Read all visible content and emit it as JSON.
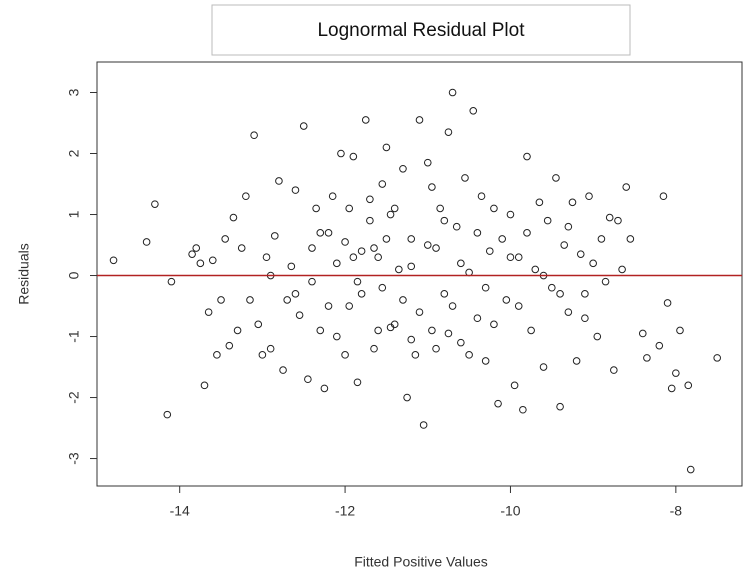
{
  "chart_data": {
    "type": "scatter",
    "title": "Lognormal Residual Plot",
    "x_label": "Fitted Positive Values",
    "y_label": "Residuals",
    "x": [
      -14.8,
      -14.4,
      -14.3,
      -14.15,
      -14.1,
      -13.85,
      -13.8,
      -13.75,
      -13.7,
      -13.65,
      -13.6,
      -13.55,
      -13.5,
      -13.45,
      -13.4,
      -13.35,
      -13.3,
      -13.25,
      -13.2,
      -13.15,
      -13.1,
      -13.05,
      -13.0,
      -12.95,
      -12.9,
      -12.85,
      -12.8,
      -12.75,
      -12.7,
      -12.65,
      -12.6,
      -12.55,
      -12.5,
      -12.45,
      -12.4,
      -12.35,
      -12.3,
      -12.25,
      -12.2,
      -12.15,
      -12.1,
      -12.05,
      -12.0,
      -11.95,
      -11.9,
      -11.85,
      -11.8,
      -11.75,
      -11.7,
      -11.65,
      -11.6,
      -11.55,
      -11.5,
      -11.45,
      -11.4,
      -11.35,
      -11.3,
      -11.25,
      -11.2,
      -11.15,
      -11.1,
      -11.05,
      -11.0,
      -10.95,
      -10.9,
      -10.85,
      -10.8,
      -10.75,
      -10.7,
      -10.65,
      -10.6,
      -10.55,
      -10.5,
      -10.45,
      -10.4,
      -10.35,
      -10.3,
      -10.25,
      -10.2,
      -10.15,
      -10.1,
      -10.05,
      -10.0,
      -9.95,
      -9.9,
      -9.85,
      -9.8,
      -9.75,
      -9.7,
      -9.65,
      -9.6,
      -9.55,
      -9.5,
      -9.45,
      -9.4,
      -9.35,
      -9.3,
      -9.25,
      -9.2,
      -9.15,
      -9.1,
      -9.05,
      -9.0,
      -8.95,
      -8.9,
      -8.85,
      -8.8,
      -8.75,
      -8.7,
      -8.65,
      -8.6,
      -8.55,
      -8.4,
      -8.35,
      -8.2,
      -8.15,
      -8.1,
      -8.05,
      -8.0,
      -7.95,
      -7.85,
      -7.82,
      -7.5,
      -12.9,
      -12.6,
      -12.4,
      -12.2,
      -12.0,
      -11.9,
      -11.8,
      -11.7,
      -11.6,
      -11.5,
      -11.4,
      -11.3,
      -11.2,
      -11.1,
      -11.0,
      -10.9,
      -10.8,
      -10.7,
      -10.6,
      -10.5,
      -10.4,
      -10.3,
      -10.2,
      -10.0,
      -9.9,
      -9.8,
      -9.6,
      -9.4,
      -9.3,
      -9.1,
      -11.45,
      -11.95,
      -12.3,
      -11.65,
      -11.2,
      -10.75,
      -11.55,
      -12.1,
      -10.95,
      -11.85
    ],
    "values": [
      0.25,
      0.55,
      1.17,
      -2.28,
      -0.1,
      0.35,
      0.45,
      0.2,
      -1.8,
      -0.6,
      0.25,
      -1.3,
      -0.4,
      0.6,
      -1.15,
      0.95,
      -0.9,
      0.45,
      1.3,
      -0.4,
      2.3,
      -0.8,
      -1.3,
      0.3,
      -1.2,
      0.65,
      1.55,
      -1.55,
      -0.4,
      0.15,
      1.4,
      -0.65,
      2.45,
      -1.7,
      -0.1,
      1.1,
      -0.9,
      -1.85,
      0.7,
      1.3,
      -1.0,
      2.0,
      0.55,
      -0.5,
      1.95,
      -1.75,
      0.4,
      2.55,
      1.25,
      -1.2,
      0.3,
      -0.2,
      2.1,
      1.0,
      -0.8,
      0.1,
      1.75,
      -2.0,
      0.6,
      -1.3,
      2.55,
      -2.45,
      1.85,
      -0.9,
      0.45,
      1.1,
      -0.3,
      2.35,
      3.0,
      0.8,
      -1.1,
      1.6,
      0.05,
      2.7,
      -0.7,
      1.3,
      -1.4,
      0.4,
      1.1,
      -2.1,
      0.6,
      -0.4,
      1.0,
      -1.8,
      0.3,
      -2.2,
      1.95,
      -0.9,
      0.1,
      1.2,
      -1.5,
      0.9,
      -0.2,
      1.6,
      -2.15,
      0.5,
      -0.6,
      1.2,
      -1.4,
      0.35,
      -0.7,
      1.3,
      0.2,
      -1.0,
      0.6,
      -0.1,
      0.95,
      -1.55,
      0.9,
      0.1,
      1.45,
      0.6,
      -0.95,
      -1.35,
      -1.15,
      1.3,
      -0.45,
      -1.85,
      -1.6,
      -0.9,
      -1.8,
      -3.18,
      -1.35,
      0.0,
      -0.3,
      0.45,
      -0.5,
      -1.3,
      0.3,
      -0.3,
      0.9,
      -0.9,
      0.6,
      1.1,
      -0.4,
      0.15,
      -0.6,
      0.5,
      -1.2,
      0.9,
      -0.5,
      0.2,
      -1.3,
      0.7,
      -0.2,
      -0.8,
      0.3,
      -0.5,
      0.7,
      0.0,
      -0.3,
      0.8,
      -0.3,
      -0.85,
      1.1,
      0.7,
      0.45,
      -1.05,
      -0.95,
      1.5,
      0.2,
      1.45,
      -0.1
    ],
    "color": "#222222",
    "hline": 0,
    "hline_color": "#b22222",
    "xlim": [
      -15.0,
      -7.2
    ],
    "ylim": [
      -3.45,
      3.5
    ],
    "xticks": [
      -14,
      -12,
      -10,
      -8
    ],
    "yticks": [
      -3,
      -2,
      -1,
      0,
      1,
      2,
      3
    ]
  }
}
